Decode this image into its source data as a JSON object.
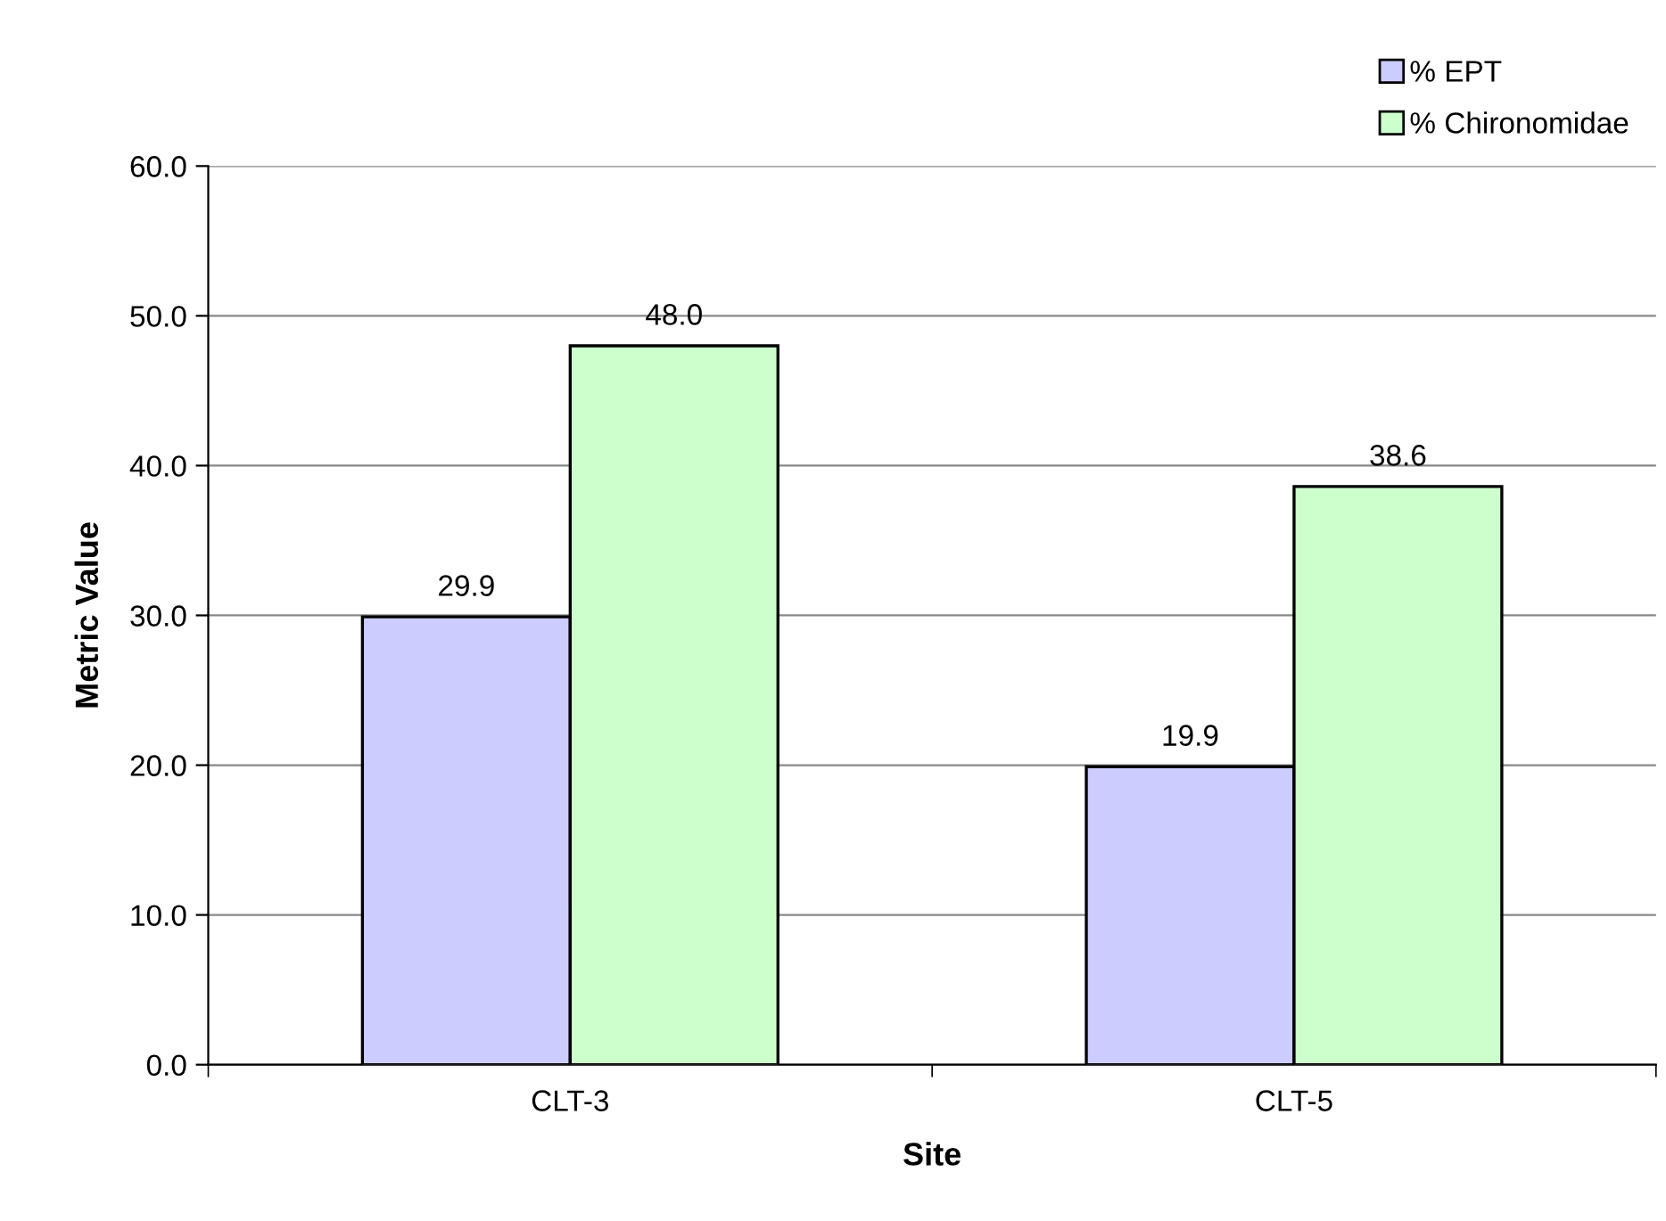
{
  "chart_data": {
    "type": "bar",
    "xlabel": "Site",
    "ylabel": "Metric Value",
    "categories": [
      "CLT-3",
      "CLT-5"
    ],
    "series": [
      {
        "name": "% EPT",
        "color": "#ccccff",
        "values": [
          29.9,
          19.9
        ],
        "value_labels": [
          "29.9",
          "19.9"
        ]
      },
      {
        "name": "% Chironomidae",
        "color": "#ccffcc",
        "values": [
          48.0,
          38.6
        ],
        "value_labels": [
          "48.0",
          "38.6"
        ]
      }
    ],
    "ylim": [
      0,
      60
    ],
    "yticks": [
      {
        "value": 0,
        "label": "0.0"
      },
      {
        "value": 10,
        "label": "10.0"
      },
      {
        "value": 20,
        "label": "20.0"
      },
      {
        "value": 30,
        "label": "30.0"
      },
      {
        "value": 40,
        "label": "40.0"
      },
      {
        "value": 50,
        "label": "50.0"
      },
      {
        "value": 60,
        "label": "60.0"
      }
    ],
    "grid": "y",
    "legend": "top right"
  }
}
